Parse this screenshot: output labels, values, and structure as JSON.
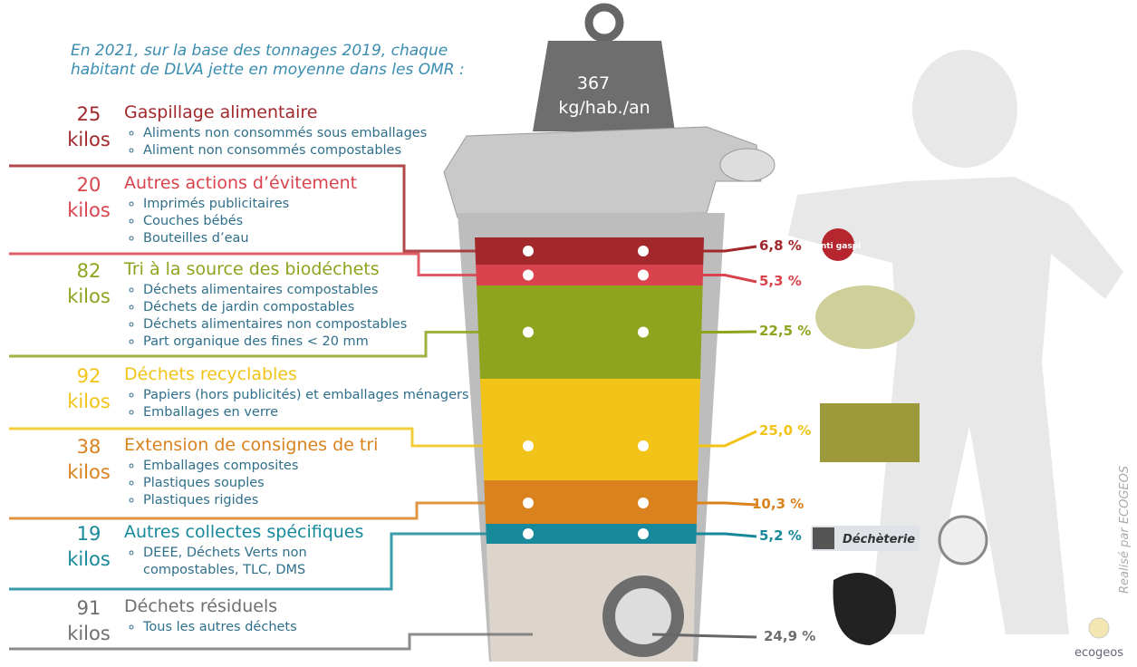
{
  "intro": [
    "En 2021, sur la base des tonnages 2019, chaque",
    "habitant de DLVA jette en moyenne dans les OMR :"
  ],
  "weight": {
    "value": "367",
    "unit": "kg/hab./an"
  },
  "categories": [
    {
      "amount": "25",
      "unit": "kilos",
      "title": "Gaspillage alimentaire",
      "color": "#a3282c",
      "items": [
        "Aliments non consommés sous emballages",
        "Aliment non consommés compostables"
      ],
      "share": "6,8 %"
    },
    {
      "amount": "20",
      "unit": "kilos",
      "title": "Autres actions d’évitement",
      "color": "#d9434e",
      "items": [
        "Imprimés publicitaires",
        "Couches bébés",
        "Bouteilles d’eau"
      ],
      "share": "5,3 %"
    },
    {
      "amount": "82",
      "unit": "kilos",
      "title": "Tri à la source des biodéchets",
      "color": "#8ea31e",
      "items": [
        "Déchets alimentaires compostables",
        "Déchets de jardin compostables",
        "Déchets alimentaires non compostables",
        "Part organique des fines < 20 mm"
      ],
      "share": "22,5 %"
    },
    {
      "amount": "92",
      "unit": "kilos",
      "title": "Déchets recyclables",
      "color": "#f2c318",
      "items": [
        "Papiers (hors publicités) et emballages ménagers",
        "Emballages en verre"
      ],
      "share": "25,0 %"
    },
    {
      "amount": "38",
      "unit": "kilos",
      "title": "Extension de consignes de tri",
      "color": "#d9821e",
      "items": [
        "Emballages composites",
        "Plastiques souples",
        "Plastiques rigides"
      ],
      "share": "10,3 %"
    },
    {
      "amount": "19",
      "unit": "kilos",
      "title": "Autres collectes spécifiques",
      "color": "#17899a",
      "items": [
        "DEEE, Déchets Verts non compostables, TLC, DMS"
      ],
      "share": "5,2 %"
    },
    {
      "amount": "91",
      "unit": "kilos",
      "title": "Déchets résiduels",
      "color": "#6f6f6f",
      "items": [
        "Tous les autres déchets"
      ],
      "share": "24,9 %"
    }
  ],
  "badges": {
    "antigaspi": "anti gaspi",
    "decheterie": "Déchèterie"
  },
  "credit": "Realisé par ECOGEOS",
  "logo": "ecogeos"
}
